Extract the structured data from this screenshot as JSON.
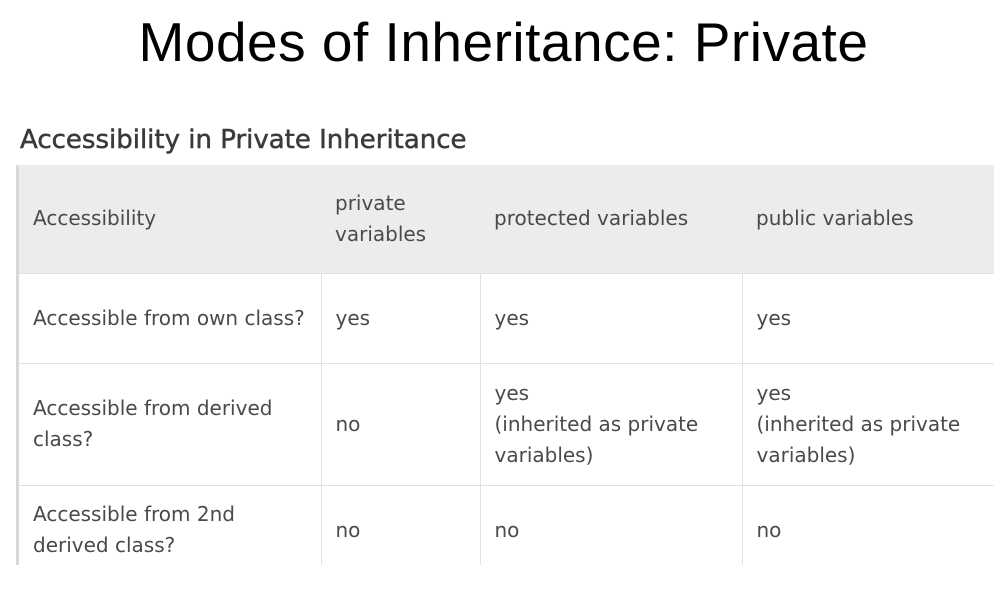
{
  "slide": {
    "title": "Modes of Inheritance: Private"
  },
  "section": {
    "heading": "Accessibility in Private Inheritance"
  },
  "table": {
    "headers": [
      "Accessibility",
      "private variables",
      "protected variables",
      "public variables"
    ],
    "rows": [
      {
        "label": "Accessible from own class?",
        "private": "yes",
        "protected": "yes",
        "public": "yes"
      },
      {
        "label": "Accessible from derived class?",
        "private": "no",
        "protected": "yes",
        "protected_note": "(inherited as private variables)",
        "public": "yes",
        "public_note": "(inherited as private variables)"
      },
      {
        "label": "Accessible from 2nd derived class?",
        "private": "no",
        "protected": "no",
        "public": "no"
      }
    ]
  }
}
